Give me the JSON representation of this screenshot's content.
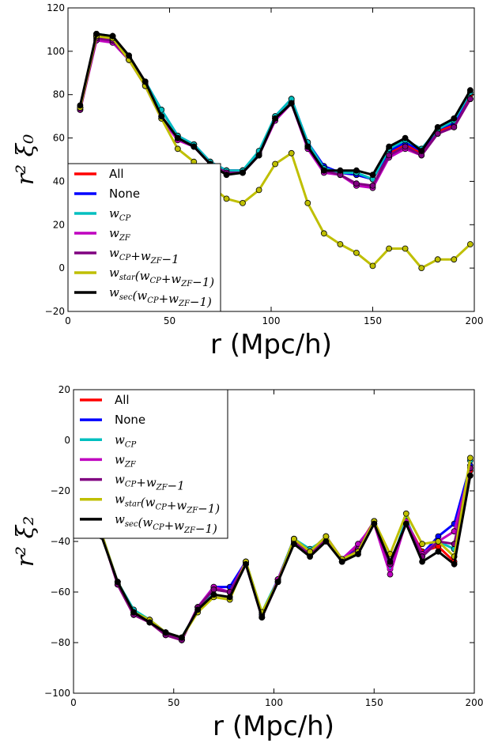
{
  "colors": {
    "All": "#ff0000",
    "None": "#0000ff",
    "wCP": "#00bfbf",
    "wZF": "#bf00bf",
    "wCPZF": "#800080",
    "wstar": "#bfbf00",
    "wsec": "#000000"
  },
  "legend_labels": [
    "All",
    "None",
    "wCP",
    "wZF",
    "wCP+wZF−1",
    "wstar(wCP+wZF−1)",
    "wsec(wCP+wZF−1)"
  ],
  "chart_data": [
    {
      "type": "line",
      "xlabel": "r (Mpc/h)",
      "ylabel": "r² ξ₀",
      "xlim": [
        0,
        200
      ],
      "ylim": [
        -20,
        120
      ],
      "xticks": [
        "0",
        "50",
        "100",
        "150",
        "200"
      ],
      "yticks": [
        "−20",
        "0",
        "20",
        "40",
        "60",
        "80",
        "100",
        "120"
      ],
      "grid": false,
      "legend_position": "lower-left",
      "x": [
        6,
        14,
        22,
        30,
        38,
        46,
        54,
        62,
        70,
        78,
        86,
        94,
        102,
        110,
        118,
        126,
        134,
        142,
        150,
        158,
        166,
        174,
        182,
        190,
        198
      ],
      "series": [
        {
          "name": "All",
          "values": [
            74,
            107,
            107,
            97,
            85,
            70,
            60,
            57,
            48,
            45,
            45,
            53,
            69,
            77,
            57,
            46,
            44,
            43,
            41,
            53,
            57,
            53,
            63,
            66,
            80
          ]
        },
        {
          "name": "None",
          "values": [
            74,
            107,
            107,
            97,
            86,
            73,
            61,
            57,
            49,
            45,
            45,
            53,
            70,
            78,
            58,
            47,
            44,
            43,
            41,
            54,
            58,
            54,
            64,
            67,
            81
          ]
        },
        {
          "name": "wCP",
          "values": [
            74,
            108,
            107,
            97,
            86,
            73,
            61,
            57,
            49,
            45,
            45,
            54,
            70,
            78,
            58,
            46,
            44,
            44,
            41,
            55,
            59,
            55,
            64,
            68,
            81
          ]
        },
        {
          "name": "wZF",
          "values": [
            73,
            105,
            104,
            96,
            84,
            69,
            59,
            56,
            48,
            44,
            44,
            52,
            68,
            76,
            55,
            44,
            43,
            38,
            37,
            51,
            55,
            52,
            62,
            65,
            78
          ]
        },
        {
          "name": "wCP+wZF−1",
          "values": [
            73,
            106,
            105,
            96,
            85,
            70,
            60,
            56,
            48,
            44,
            44,
            52,
            69,
            76,
            56,
            45,
            43,
            39,
            38,
            52,
            56,
            52,
            62,
            65,
            78
          ]
        },
        {
          "name": "wstar(wCP+wZF−1)",
          "values": [
            74,
            107,
            106,
            96,
            84,
            69,
            55,
            49,
            38,
            32,
            30,
            36,
            48,
            53,
            30,
            16,
            11,
            7,
            1,
            9,
            9,
            0,
            4,
            4,
            11
          ]
        },
        {
          "name": "wsec(wCP+wZF−1)",
          "values": [
            75,
            108,
            107,
            98,
            86,
            70,
            60,
            56,
            48,
            43,
            44,
            52,
            69,
            76,
            56,
            45,
            45,
            45,
            43,
            56,
            60,
            54,
            65,
            69,
            82
          ]
        }
      ]
    },
    {
      "type": "line",
      "xlabel": "r (Mpc/h)",
      "ylabel": "r² ξ₂",
      "xlim": [
        0,
        200
      ],
      "ylim": [
        -100,
        20
      ],
      "xticks": [
        "0",
        "50",
        "100",
        "150",
        "200"
      ],
      "yticks": [
        "−100",
        "−80",
        "−60",
        "−40",
        "−20",
        "0",
        "20"
      ],
      "grid": false,
      "legend_position": "upper-left",
      "x": [
        6,
        14,
        22,
        30,
        38,
        46,
        54,
        62,
        70,
        78,
        86,
        94,
        102,
        110,
        118,
        126,
        134,
        142,
        150,
        158,
        166,
        174,
        182,
        190,
        198
      ],
      "series": [
        {
          "name": "All",
          "values": [
            -10,
            -37,
            -57,
            -69,
            -72,
            -77,
            -79,
            -66,
            -59,
            -60,
            -48,
            -70,
            -55,
            -39,
            -45,
            -38,
            -48,
            -42,
            -32,
            -50,
            -32,
            -44,
            -42,
            -48,
            -12
          ]
        },
        {
          "name": "None",
          "values": [
            -9,
            -37,
            -56,
            -68,
            -71,
            -76,
            -79,
            -66,
            -58,
            -58,
            -48,
            -69,
            -55,
            -39,
            -44,
            -38,
            -47,
            -43,
            -32,
            -51,
            -32,
            -45,
            -38,
            -33,
            -10
          ]
        },
        {
          "name": "wCP",
          "values": [
            -9,
            -37,
            -56,
            -67,
            -71,
            -76,
            -78,
            -67,
            -59,
            -60,
            -48,
            -68,
            -55,
            -39,
            -43,
            -39,
            -48,
            -44,
            -32,
            -50,
            -31,
            -46,
            -40,
            -43,
            -8
          ]
        },
        {
          "name": "wZF",
          "values": [
            -9,
            -37,
            -57,
            -69,
            -72,
            -77,
            -79,
            -66,
            -58,
            -60,
            -48,
            -70,
            -55,
            -40,
            -45,
            -38,
            -47,
            -41,
            -33,
            -53,
            -32,
            -45,
            -40,
            -36,
            -11
          ]
        },
        {
          "name": "wCP+wZF−1",
          "values": [
            -9,
            -37,
            -57,
            -69,
            -72,
            -77,
            -79,
            -66,
            -59,
            -60,
            -49,
            -70,
            -56,
            -40,
            -45,
            -39,
            -48,
            -43,
            -33,
            -49,
            -33,
            -46,
            -40,
            -41,
            -11
          ]
        },
        {
          "name": "wstar(wCP+wZF−1)",
          "values": [
            -9,
            -37,
            -56,
            -68,
            -71,
            -76,
            -78,
            -68,
            -62,
            -63,
            -48,
            -68,
            -56,
            -39,
            -44,
            -38,
            -47,
            -44,
            -32,
            -45,
            -29,
            -41,
            -40,
            -46,
            -7
          ]
        },
        {
          "name": "wsec(wCP+wZF−1)",
          "values": [
            -10,
            -38,
            -56,
            -68,
            -72,
            -76,
            -78,
            -67,
            -61,
            -62,
            -49,
            -70,
            -56,
            -41,
            -46,
            -40,
            -48,
            -45,
            -33,
            -48,
            -33,
            -48,
            -44,
            -49,
            -14
          ]
        }
      ]
    }
  ]
}
